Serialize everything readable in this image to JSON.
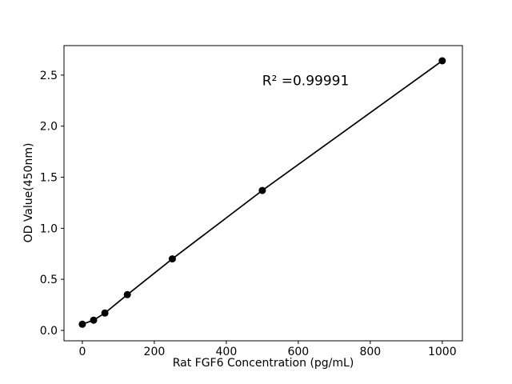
{
  "figure": {
    "background": "#ffffff",
    "text_color": "#000000"
  },
  "chart_data": {
    "type": "scatter",
    "subtype": "line-with-markers",
    "title": "",
    "xlabel": "Rat FGF6 Concentration (pg/mL)",
    "ylabel": "OD Value(450nm)",
    "annotation": "R² =0.99991",
    "x": [
      0,
      31.25,
      62.5,
      125,
      250,
      500,
      1000
    ],
    "y": [
      0.06,
      0.1,
      0.17,
      0.35,
      0.7,
      1.37,
      2.64
    ],
    "xlim": [
      -51,
      1056
    ],
    "ylim": [
      -0.102,
      2.789
    ],
    "xticks": [
      0,
      200,
      400,
      600,
      800,
      1000
    ],
    "xtick_labels": [
      "0",
      "200",
      "400",
      "600",
      "800",
      "1000"
    ],
    "yticks": [
      0,
      0.5,
      1,
      1.5,
      2,
      2.5
    ],
    "ytick_labels": [
      "0.0",
      "0.5",
      "1.0",
      "1.5",
      "2.0",
      "2.5"
    ],
    "line_color": "#000000",
    "marker_color": "#000000",
    "marker_radius": 4.5,
    "line_width": 1.7,
    "grid": false,
    "legend": null
  }
}
